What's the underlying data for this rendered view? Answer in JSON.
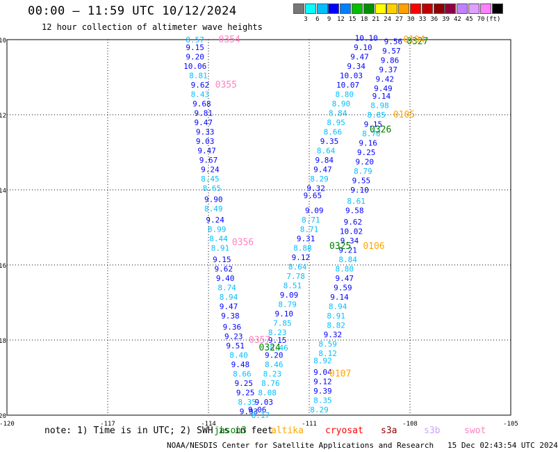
{
  "title": "00:00 — 11:59 UTC 10/12/2024",
  "subtitle": "12 hour collection of altimeter wave heights",
  "colorbar": {
    "colors": [
      "#777777",
      "#00ffff",
      "#00bfff",
      "#0000ff",
      "#0080ff",
      "#00c000",
      "#009000",
      "#ffff00",
      "#ffd000",
      "#ffa000",
      "#ff0000",
      "#c00000",
      "#900000",
      "#900040",
      "#c080ff",
      "#e0a0ff",
      "#ff80ff",
      "#000000"
    ],
    "labels": [
      "3",
      "6",
      "9",
      "12",
      "15",
      "18",
      "21",
      "24",
      "27",
      "30",
      "33",
      "36",
      "39",
      "42",
      "45",
      "70",
      "(ft)"
    ]
  },
  "note": "note: 1) Time is in UTC; 2) SWH is in feet",
  "satellites": [
    {
      "name": "jason3",
      "color": "#008000"
    },
    {
      "name": "altika",
      "color": "#ffa500"
    },
    {
      "name": "cryosat",
      "color": "#ff0000"
    },
    {
      "name": "s3a",
      "color": "#8b0000"
    },
    {
      "name": "s3b",
      "color": "#c8a0ff"
    },
    {
      "name": "swot",
      "color": "#ff80c0"
    }
  ],
  "credit": "NOAA/NESDIS Center for Satellite Applications and Research   15 Dec 02:43:54 UTC 2024",
  "chart_data": {
    "type": "scatter",
    "title": "00:00 — 11:59 UTC 10/12/2024",
    "xlim": [
      -120,
      -105
    ],
    "ylim": [
      -20,
      -10
    ],
    "xticks": [
      "-120",
      "-117",
      "-114",
      "-111",
      "-108",
      "-105"
    ],
    "yticks": [
      "-20",
      "-18",
      "-16",
      "-14",
      "-12",
      "-10"
    ],
    "grid": true,
    "pass_labels": [
      {
        "text": "0354",
        "x": -113.7,
        "y": -10.0,
        "sat": "swot"
      },
      {
        "text": "0355",
        "x": -113.8,
        "y": -11.2,
        "sat": "swot"
      },
      {
        "text": "0356",
        "x": -113.3,
        "y": -15.4,
        "sat": "swot"
      },
      {
        "text": "0357",
        "x": -112.8,
        "y": -18.0,
        "sat": "swot"
      },
      {
        "text": "0324",
        "x": -112.5,
        "y": -18.2,
        "sat": "jason3"
      },
      {
        "text": "0325",
        "x": -110.4,
        "y": -15.5,
        "sat": "jason3"
      },
      {
        "text": "0326",
        "x": -109.2,
        "y": -12.4,
        "sat": "jason3"
      },
      {
        "text": "0327",
        "x": -108.1,
        "y": -10.05,
        "sat": "jason3"
      },
      {
        "text": "0104",
        "x": -108.2,
        "y": -10.0,
        "sat": "altika"
      },
      {
        "text": "0105",
        "x": -108.5,
        "y": -12.0,
        "sat": "altika"
      },
      {
        "text": "0106",
        "x": -109.4,
        "y": -15.5,
        "sat": "altika"
      },
      {
        "text": "0107",
        "x": -110.4,
        "y": -18.9,
        "sat": "altika"
      }
    ],
    "series": [
      {
        "name": "0354",
        "points": [
          {
            "x": -114.4,
            "y": -10.0,
            "v": "8.57",
            "c": "#00bfff"
          },
          {
            "x": -114.4,
            "y": -10.2,
            "v": "9.15",
            "c": "#0000ff"
          },
          {
            "x": -114.4,
            "y": -10.45,
            "v": "9.20",
            "c": "#0000ff"
          },
          {
            "x": -114.4,
            "y": -10.7,
            "v": "10.06",
            "c": "#0000ff"
          },
          {
            "x": -114.3,
            "y": -10.95,
            "v": "8.81",
            "c": "#00bfff"
          },
          {
            "x": -114.25,
            "y": -11.2,
            "v": "9.62",
            "c": "#0000ff"
          },
          {
            "x": -114.25,
            "y": -11.45,
            "v": "8.43",
            "c": "#00bfff"
          },
          {
            "x": -114.2,
            "y": -11.7,
            "v": "9.68",
            "c": "#0000ff"
          },
          {
            "x": -114.15,
            "y": -11.95,
            "v": "9.81",
            "c": "#0000ff"
          },
          {
            "x": -114.15,
            "y": -12.2,
            "v": "9.47",
            "c": "#0000ff"
          },
          {
            "x": -114.1,
            "y": -12.45,
            "v": "9.33",
            "c": "#0000ff"
          },
          {
            "x": -114.1,
            "y": -12.7,
            "v": "9.03",
            "c": "#0000ff"
          },
          {
            "x": -114.05,
            "y": -12.95,
            "v": "9.47",
            "c": "#0000ff"
          },
          {
            "x": -114.0,
            "y": -13.2,
            "v": "9.67",
            "c": "#0000ff"
          },
          {
            "x": -113.95,
            "y": -13.45,
            "v": "9.24",
            "c": "#0000ff"
          },
          {
            "x": -113.95,
            "y": -13.7,
            "v": "8.45",
            "c": "#00bfff"
          },
          {
            "x": -113.9,
            "y": -13.95,
            "v": "8.65",
            "c": "#00bfff"
          },
          {
            "x": -113.85,
            "y": -14.25,
            "v": "9.90",
            "c": "#0000ff"
          },
          {
            "x": -113.85,
            "y": -14.5,
            "v": "8.49",
            "c": "#00bfff"
          },
          {
            "x": -113.8,
            "y": -14.8,
            "v": "9.24",
            "c": "#0000ff"
          },
          {
            "x": -113.75,
            "y": -15.05,
            "v": "8.99",
            "c": "#00bfff"
          },
          {
            "x": -113.7,
            "y": -15.3,
            "v": "8.44",
            "c": "#00bfff"
          },
          {
            "x": -113.65,
            "y": -15.55,
            "v": "8.91",
            "c": "#00bfff"
          },
          {
            "x": -113.6,
            "y": -15.85,
            "v": "9.15",
            "c": "#0000ff"
          },
          {
            "x": -113.55,
            "y": -16.1,
            "v": "9.62",
            "c": "#0000ff"
          },
          {
            "x": -113.5,
            "y": -16.35,
            "v": "9.40",
            "c": "#0000ff"
          },
          {
            "x": -113.45,
            "y": -16.6,
            "v": "8.74",
            "c": "#00bfff"
          },
          {
            "x": -113.4,
            "y": -16.85,
            "v": "8.94",
            "c": "#00bfff"
          },
          {
            "x": -113.4,
            "y": -17.1,
            "v": "9.47",
            "c": "#0000ff"
          },
          {
            "x": -113.35,
            "y": -17.35,
            "v": "9.38",
            "c": "#0000ff"
          },
          {
            "x": -113.3,
            "y": -17.65,
            "v": "9.36",
            "c": "#0000ff"
          },
          {
            "x": -113.25,
            "y": -17.9,
            "v": "9.23",
            "c": "#0000ff"
          },
          {
            "x": -113.2,
            "y": -18.15,
            "v": "9.51",
            "c": "#0000ff"
          },
          {
            "x": -113.1,
            "y": -18.4,
            "v": "8.40",
            "c": "#00bfff"
          },
          {
            "x": -113.05,
            "y": -18.65,
            "v": "9.48",
            "c": "#0000ff"
          },
          {
            "x": -113.0,
            "y": -18.9,
            "v": "8.66",
            "c": "#00bfff"
          },
          {
            "x": -112.95,
            "y": -19.15,
            "v": "9.25",
            "c": "#0000ff"
          },
          {
            "x": -112.9,
            "y": -19.4,
            "v": "9.25",
            "c": "#0000ff"
          },
          {
            "x": -112.85,
            "y": -19.65,
            "v": "8.35",
            "c": "#00bfff"
          },
          {
            "x": -112.8,
            "y": -19.9,
            "v": "9.93",
            "c": "#0000ff"
          }
        ]
      },
      {
        "name": "0324",
        "points": [
          {
            "x": -112.55,
            "y": -19.85,
            "v": "9.06",
            "c": "#0000ff"
          },
          {
            "x": -112.45,
            "y": -20.0,
            "v": "8.17",
            "c": "#00bfff"
          },
          {
            "x": -112.35,
            "y": -19.65,
            "v": "9.03",
            "c": "#0000ff"
          },
          {
            "x": -112.25,
            "y": -19.4,
            "v": "8.08",
            "c": "#00bfff"
          },
          {
            "x": -112.15,
            "y": -19.15,
            "v": "8.76",
            "c": "#00bfff"
          },
          {
            "x": -112.1,
            "y": -18.9,
            "v": "8.23",
            "c": "#00bfff"
          },
          {
            "x": -112.05,
            "y": -18.65,
            "v": "8.46",
            "c": "#00bfff"
          },
          {
            "x": -112.05,
            "y": -18.4,
            "v": "9.20",
            "c": "#0000ff"
          },
          {
            "x": -111.9,
            "y": -18.2,
            "v": "8.46",
            "c": "#00bfff"
          },
          {
            "x": -111.95,
            "y": -18.0,
            "v": "9.15",
            "c": "#0000ff"
          },
          {
            "x": -111.95,
            "y": -17.8,
            "v": "8.23",
            "c": "#00bfff"
          },
          {
            "x": -111.8,
            "y": -17.55,
            "v": "7.85",
            "c": "#00bfff"
          },
          {
            "x": -111.75,
            "y": -17.3,
            "v": "9.10",
            "c": "#0000ff"
          },
          {
            "x": -111.65,
            "y": -17.05,
            "v": "8.79",
            "c": "#00bfff"
          },
          {
            "x": -111.6,
            "y": -16.8,
            "v": "9.09",
            "c": "#0000ff"
          },
          {
            "x": -111.5,
            "y": -16.55,
            "v": "8.51",
            "c": "#00bfff"
          },
          {
            "x": -111.4,
            "y": -16.3,
            "v": "7.78",
            "c": "#00bfff"
          },
          {
            "x": -111.35,
            "y": -16.05,
            "v": "8.64",
            "c": "#00bfff"
          },
          {
            "x": -111.25,
            "y": -15.8,
            "v": "9.12",
            "c": "#0000ff"
          },
          {
            "x": -111.2,
            "y": -15.55,
            "v": "8.88",
            "c": "#00bfff"
          },
          {
            "x": -111.1,
            "y": -15.3,
            "v": "9.31",
            "c": "#0000ff"
          },
          {
            "x": -111.0,
            "y": -15.05,
            "v": "8.71",
            "c": "#00bfff"
          },
          {
            "x": -110.95,
            "y": -14.8,
            "v": "8.71",
            "c": "#00bfff"
          },
          {
            "x": -110.85,
            "y": -14.55,
            "v": "9.09",
            "c": "#0000ff"
          }
        ]
      },
      {
        "name": "0325",
        "points": [
          {
            "x": -110.9,
            "y": -14.15,
            "v": "9.65",
            "c": "#0000ff"
          },
          {
            "x": -110.8,
            "y": -13.95,
            "v": "9.32",
            "c": "#0000ff"
          },
          {
            "x": -110.7,
            "y": -13.7,
            "v": "8.29",
            "c": "#00bfff"
          },
          {
            "x": -110.6,
            "y": -13.45,
            "v": "9.47",
            "c": "#0000ff"
          },
          {
            "x": -110.55,
            "y": -13.2,
            "v": "9.84",
            "c": "#0000ff"
          },
          {
            "x": -110.5,
            "y": -12.95,
            "v": "8.64",
            "c": "#00bfff"
          },
          {
            "x": -110.4,
            "y": -12.7,
            "v": "9.35",
            "c": "#0000ff"
          },
          {
            "x": -110.3,
            "y": -12.45,
            "v": "8.66",
            "c": "#00bfff"
          },
          {
            "x": -110.2,
            "y": -12.2,
            "v": "8.95",
            "c": "#00bfff"
          },
          {
            "x": -110.15,
            "y": -11.95,
            "v": "8.84",
            "c": "#00bfff"
          },
          {
            "x": -110.05,
            "y": -11.7,
            "v": "8.90",
            "c": "#00bfff"
          },
          {
            "x": -109.95,
            "y": -11.45,
            "v": "8.80",
            "c": "#00bfff"
          },
          {
            "x": -109.85,
            "y": -11.2,
            "v": "10.07",
            "c": "#0000ff"
          },
          {
            "x": -109.75,
            "y": -10.95,
            "v": "10.03",
            "c": "#0000ff"
          },
          {
            "x": -109.6,
            "y": -10.7,
            "v": "9.34",
            "c": "#0000ff"
          },
          {
            "x": -109.5,
            "y": -10.45,
            "v": "9.47",
            "c": "#0000ff"
          },
          {
            "x": -109.4,
            "y": -10.2,
            "v": "9.10",
            "c": "#0000ff"
          },
          {
            "x": -109.3,
            "y": -9.95,
            "v": "10.10",
            "c": "#0000ff"
          }
        ]
      },
      {
        "name": "0106",
        "points": [
          {
            "x": -110.7,
            "y": -19.85,
            "v": "8.29",
            "c": "#00bfff"
          },
          {
            "x": -110.6,
            "y": -19.6,
            "v": "8.35",
            "c": "#00bfff"
          },
          {
            "x": -110.6,
            "y": -19.35,
            "v": "9.39",
            "c": "#0000ff"
          },
          {
            "x": -110.6,
            "y": -19.1,
            "v": "9.12",
            "c": "#0000ff"
          },
          {
            "x": -110.6,
            "y": -18.85,
            "v": "9.04",
            "c": "#0000ff"
          },
          {
            "x": -110.6,
            "y": -18.55,
            "v": "8.92",
            "c": "#00bfff"
          },
          {
            "x": -110.45,
            "y": -18.35,
            "v": "8.12",
            "c": "#00bfff"
          },
          {
            "x": -110.45,
            "y": -18.1,
            "v": "8.59",
            "c": "#00bfff"
          },
          {
            "x": -110.3,
            "y": -17.85,
            "v": "9.32",
            "c": "#0000ff"
          },
          {
            "x": -110.2,
            "y": -17.6,
            "v": "8.82",
            "c": "#00bfff"
          },
          {
            "x": -110.2,
            "y": -17.35,
            "v": "8.91",
            "c": "#00bfff"
          },
          {
            "x": -110.15,
            "y": -17.1,
            "v": "8.94",
            "c": "#00bfff"
          },
          {
            "x": -110.1,
            "y": -16.85,
            "v": "9.14",
            "c": "#0000ff"
          },
          {
            "x": -110.0,
            "y": -16.6,
            "v": "9.59",
            "c": "#0000ff"
          },
          {
            "x": -109.95,
            "y": -16.35,
            "v": "9.47",
            "c": "#0000ff"
          },
          {
            "x": -109.95,
            "y": -16.1,
            "v": "8.80",
            "c": "#00bfff"
          },
          {
            "x": -109.85,
            "y": -15.85,
            "v": "8.84",
            "c": "#00bfff"
          },
          {
            "x": -109.85,
            "y": -15.6,
            "v": "9.21",
            "c": "#0000ff"
          },
          {
            "x": -109.8,
            "y": -15.35,
            "v": "9.34",
            "c": "#0000ff"
          },
          {
            "x": -109.75,
            "y": -15.1,
            "v": "10.02",
            "c": "#0000ff"
          },
          {
            "x": -109.7,
            "y": -14.85,
            "v": "9.62",
            "c": "#0000ff"
          },
          {
            "x": -109.65,
            "y": -14.55,
            "v": "9.58",
            "c": "#0000ff"
          },
          {
            "x": -109.6,
            "y": -14.3,
            "v": "8.61",
            "c": "#00bfff"
          },
          {
            "x": -109.5,
            "y": -14.0,
            "v": "9.10",
            "c": "#0000ff"
          },
          {
            "x": -109.45,
            "y": -13.75,
            "v": "9.55",
            "c": "#0000ff"
          },
          {
            "x": -109.4,
            "y": -13.5,
            "v": "8.79",
            "c": "#00bfff"
          },
          {
            "x": -109.35,
            "y": -13.25,
            "v": "9.20",
            "c": "#0000ff"
          },
          {
            "x": -109.3,
            "y": -13.0,
            "v": "9.25",
            "c": "#0000ff"
          },
          {
            "x": -109.25,
            "y": -12.75,
            "v": "9.16",
            "c": "#0000ff"
          },
          {
            "x": -109.15,
            "y": -12.5,
            "v": "8.70",
            "c": "#00bfff"
          },
          {
            "x": -109.1,
            "y": -12.25,
            "v": "9.15",
            "c": "#0000ff"
          },
          {
            "x": -109.0,
            "y": -12.0,
            "v": "8.85",
            "c": "#00bfff"
          },
          {
            "x": -108.9,
            "y": -11.75,
            "v": "8.98",
            "c": "#00bfff"
          },
          {
            "x": -108.85,
            "y": -11.5,
            "v": "9.14",
            "c": "#0000ff"
          },
          {
            "x": -108.8,
            "y": -11.3,
            "v": "9.49",
            "c": "#0000ff"
          },
          {
            "x": -108.75,
            "y": -11.05,
            "v": "9.42",
            "c": "#0000ff"
          },
          {
            "x": -108.65,
            "y": -10.8,
            "v": "9.37",
            "c": "#0000ff"
          },
          {
            "x": -108.6,
            "y": -10.55,
            "v": "9.86",
            "c": "#0000ff"
          },
          {
            "x": -108.55,
            "y": -10.3,
            "v": "9.57",
            "c": "#0000ff"
          },
          {
            "x": -108.5,
            "y": -10.05,
            "v": "9.56",
            "c": "#0000ff"
          }
        ]
      }
    ]
  }
}
